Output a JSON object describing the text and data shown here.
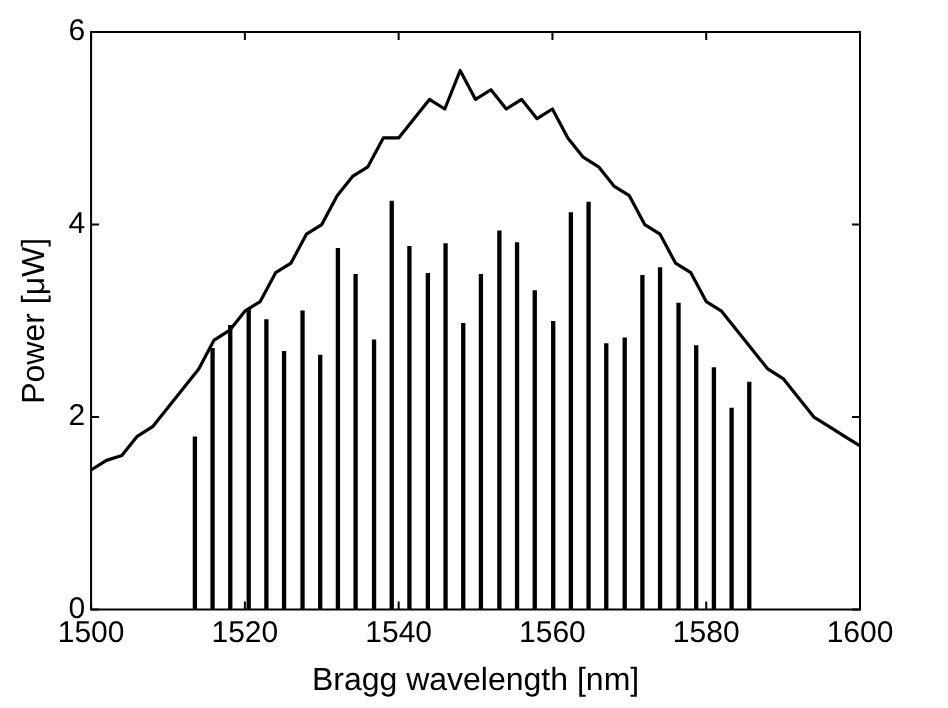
{
  "chart_data": {
    "type": "line",
    "xlabel": "Bragg wavelength [nm]",
    "ylabel": "Power [μW]",
    "xlim": [
      1500,
      1600
    ],
    "xticks": [
      1500,
      1520,
      1540,
      1560,
      1580,
      1600
    ],
    "ylim": [
      0,
      6
    ],
    "yticks": [
      0,
      2,
      4,
      6
    ],
    "marker": "none",
    "line_style": "solid",
    "series": [
      {
        "color": "#000000",
        "x": [
          1500,
          1502,
          1504,
          1506,
          1508,
          1510,
          1512,
          1514,
          1516,
          1518,
          1520,
          1522,
          1524,
          1526,
          1528,
          1530,
          1532,
          1534,
          1536,
          1538,
          1540,
          1542,
          1544,
          1546,
          1548,
          1550,
          1552,
          1554,
          1556,
          1558,
          1560,
          1562,
          1564,
          1566,
          1568,
          1570,
          1572,
          1574,
          1576,
          1578,
          1580,
          1582,
          1584,
          1586,
          1588,
          1590,
          1592,
          1594,
          1596,
          1598,
          1600
        ],
        "values": [
          1.45,
          1.55,
          1.6,
          1.8,
          1.9,
          2.1,
          2.3,
          2.5,
          2.8,
          2.9,
          3.1,
          3.2,
          3.5,
          3.6,
          3.9,
          4.0,
          4.3,
          4.5,
          4.6,
          4.9,
          4.9,
          5.1,
          5.3,
          5.2,
          5.6,
          5.3,
          5.4,
          5.2,
          5.3,
          5.1,
          5.2,
          4.9,
          4.7,
          4.6,
          4.4,
          4.3,
          4.0,
          3.9,
          3.6,
          3.5,
          3.2,
          3.1,
          2.9,
          2.7,
          2.5,
          2.4,
          2.2,
          2.0,
          1.9,
          1.8,
          1.7
        ]
      },
      {
        "type": "bar",
        "color": "#000000",
        "x": [
          1513.5,
          1515.8,
          1518.1,
          1520.5,
          1522.8,
          1525.1,
          1527.5,
          1529.8,
          1532.1,
          1534.4,
          1536.8,
          1539.1,
          1541.4,
          1543.8,
          1546.1,
          1548.4,
          1550.7,
          1553.1,
          1555.4,
          1557.7,
          1560.1,
          1562.4,
          1564.7,
          1567.0,
          1569.4,
          1571.7,
          1574.0,
          1576.4,
          1578.7,
          1581.0,
          1583.3,
          1585.6
        ],
        "values": [
          1.79,
          2.71,
          2.95,
          3.12,
          3.01,
          2.68,
          3.1,
          2.64,
          3.75,
          3.48,
          2.8,
          4.24,
          3.77,
          3.49,
          3.8,
          2.97,
          3.48,
          3.93,
          3.81,
          3.31,
          2.99,
          4.12,
          4.23,
          2.76,
          2.82,
          3.47,
          3.55,
          3.18,
          2.74,
          2.51,
          2.09,
          2.36
        ]
      }
    ]
  }
}
